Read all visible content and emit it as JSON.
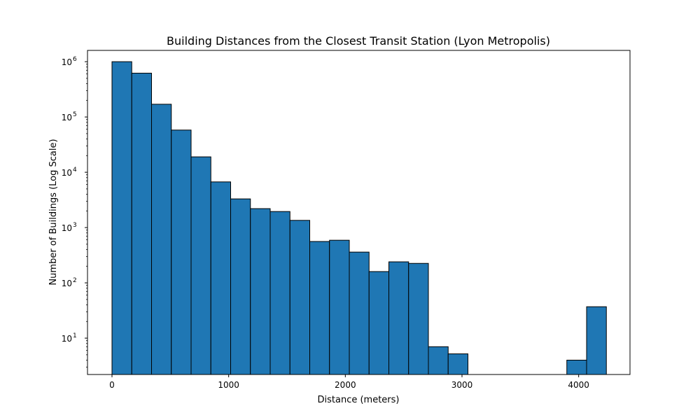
{
  "chart_data": {
    "type": "bar",
    "title": "Building Distances from the Closest Transit Station (Lyon Metropolis)",
    "xlabel": "Distance (meters)",
    "ylabel": "Number of Buildings (Log Scale)",
    "yscale": "log",
    "ylim": [
      2.2,
      1600000
    ],
    "xlim": [
      -210,
      4440
    ],
    "bin_width": 169.5,
    "bins_start": [
      0,
      169.5,
      339,
      508.5,
      678,
      847.5,
      1017,
      1186.5,
      1356,
      1525.5,
      1695,
      1864.5,
      2034,
      2203.5,
      2373,
      2542.5,
      2712,
      2881.5,
      3898.5,
      4068
    ],
    "values": [
      1000000,
      620000,
      170000,
      58000,
      19000,
      6700,
      3300,
      2200,
      1950,
      1350,
      560,
      590,
      360,
      160,
      240,
      225,
      7,
      5.2,
      4,
      37
    ],
    "bar_color": "#1f77b4",
    "edge_color": "#000000",
    "grid": false,
    "x_ticks": [
      {
        "value": 0,
        "label": "0"
      },
      {
        "value": 1000,
        "label": "1000"
      },
      {
        "value": 2000,
        "label": "2000"
      },
      {
        "value": 3000,
        "label": "3000"
      },
      {
        "value": 4000,
        "label": "4000"
      }
    ],
    "y_ticks": [
      {
        "value": 10,
        "base": "10",
        "exp": "1"
      },
      {
        "value": 100,
        "base": "10",
        "exp": "2"
      },
      {
        "value": 1000,
        "base": "10",
        "exp": "3"
      },
      {
        "value": 10000,
        "base": "10",
        "exp": "4"
      },
      {
        "value": 100000,
        "base": "10",
        "exp": "5"
      },
      {
        "value": 1000000,
        "base": "10",
        "exp": "6"
      }
    ]
  }
}
